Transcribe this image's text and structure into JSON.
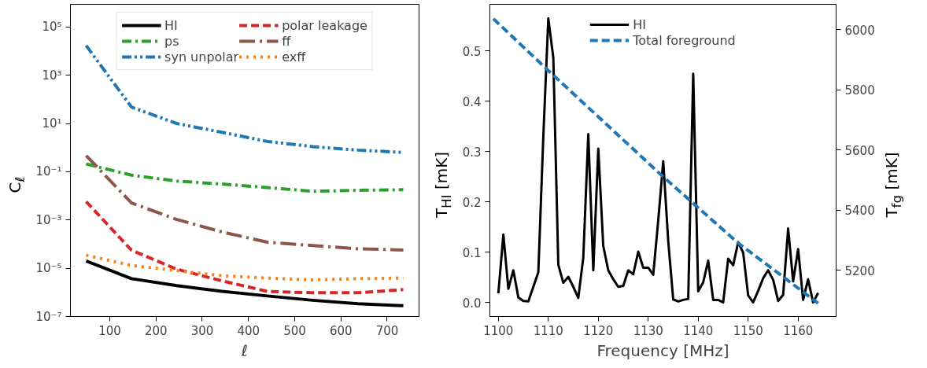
{
  "chart_data": [
    {
      "type": "line",
      "xlabel": "ℓ",
      "ylabel": "C$_{ℓ}$",
      "log": "y",
      "legend": "top",
      "x": [
        49,
        147,
        245,
        343,
        441,
        539,
        637,
        735
      ],
      "xlim": [
        15,
        769
      ],
      "xticks": [
        100,
        200,
        300,
        400,
        500,
        600,
        700
      ],
      "ylim": [
        1e-07,
        870000
      ],
      "yticks": [
        {
          "value": 1e-07,
          "label": "10⁻⁷"
        },
        {
          "value": 1e-05,
          "label": "10⁻⁵"
        },
        {
          "value": 0.001,
          "label": "10⁻³"
        },
        {
          "value": 0.1,
          "label": "10⁻¹"
        },
        {
          "value": 10,
          "label": "10¹"
        },
        {
          "value": 1000,
          "label": "10³"
        },
        {
          "value": 100000,
          "label": "10⁵"
        }
      ],
      "series": [
        {
          "name": "HI",
          "color": "#000000",
          "line_style": "solid",
          "values": [
            2e-05,
            3.7e-06,
            1.9e-06,
            1.1e-06,
            7.1e-07,
            4.7e-07,
            3.4e-07,
            2.8e-07
          ]
        },
        {
          "name": "ps",
          "color": "#2ca02c",
          "line_style": "dashdot",
          "values": [
            0.21,
            0.072,
            0.041,
            0.031,
            0.022,
            0.0155,
            0.017,
            0.018
          ]
        },
        {
          "name": "syn unpolar",
          "color": "#1f77b4",
          "line_style": "dashdotdot",
          "values": [
            17000,
            48,
            10,
            4.3,
            1.8,
            1.1,
            0.79,
            0.63
          ]
        },
        {
          "name": "polar leakage",
          "color": "#d62728",
          "line_style": "dashed",
          "values": [
            0.0058,
            5.6e-05,
            9.1e-06,
            3e-06,
            1.1e-06,
            9.6e-07,
            9.6e-07,
            1.3e-06
          ]
        },
        {
          "name": "ff",
          "color": "#8c564b",
          "line_style": "longdashdot",
          "values": [
            0.47,
            0.0051,
            0.00105,
            0.00032,
            0.00012,
            8.7e-05,
            6.4e-05,
            5.7e-05
          ]
        },
        {
          "name": "exff",
          "color": "#ff7f0e",
          "line_style": "dotted",
          "values": [
            3.5e-05,
            1.3e-05,
            8e-06,
            4.9e-06,
            3.9e-06,
            3.3e-06,
            3.7e-06,
            3.9e-06
          ]
        }
      ]
    },
    {
      "type": "line",
      "xlabel": "Frequency [MHz]",
      "ylabel": "T$_{HI}$ [mK]",
      "y2label": "T$_{fg}$ [mK]",
      "legend": "top",
      "xlim": [
        1098.3,
        1167.6
      ],
      "xticks": [
        1100,
        1110,
        1120,
        1130,
        1140,
        1150,
        1160
      ],
      "ylim": [
        -0.028,
        0.593
      ],
      "yticks": [
        {
          "value": 0,
          "label": "0.0"
        },
        0.1,
        0.2,
        0.3,
        0.4,
        0.5
      ],
      "y2lim": [
        5047,
        6084
      ],
      "y2ticks": [
        5200,
        5400,
        5600,
        5800,
        6000
      ],
      "series": [
        {
          "name": "HI",
          "color": "#000000",
          "line_style": "solid",
          "x": [
            1100,
            1101,
            1102,
            1103,
            1104,
            1105,
            1106,
            1107,
            1108,
            1109,
            1110,
            1111,
            1112,
            1113,
            1114,
            1115,
            1116,
            1117,
            1118,
            1119,
            1120,
            1121,
            1122,
            1123,
            1124,
            1125,
            1126,
            1127,
            1128,
            1129,
            1130,
            1131,
            1132,
            1133,
            1134,
            1135,
            1136,
            1137,
            1138,
            1139,
            1140,
            1141,
            1142,
            1143,
            1144,
            1145,
            1146,
            1147,
            1148,
            1149,
            1150,
            1151,
            1152,
            1153,
            1154,
            1155,
            1156,
            1157,
            1158,
            1159,
            1160,
            1161,
            1162,
            1163,
            1164
          ],
          "values": [
            0.018,
            0.135,
            0.027,
            0.064,
            0.01,
            0.003,
            0.002,
            0.031,
            0.06,
            0.33,
            0.565,
            0.487,
            0.075,
            0.039,
            0.051,
            0.031,
            0.009,
            0.089,
            0.335,
            0.064,
            0.306,
            0.112,
            0.064,
            0.046,
            0.031,
            0.033,
            0.064,
            0.056,
            0.101,
            0.069,
            0.069,
            0.055,
            0.163,
            0.281,
            0.122,
            0.006,
            0.002,
            0.005,
            0.007,
            0.455,
            0.022,
            0.04,
            0.083,
            0.005,
            0.005,
            0.0,
            0.087,
            0.074,
            0.12,
            0.099,
            0.014,
            0.0,
            0.023,
            0.048,
            0.064,
            0.045,
            0.003,
            0.015,
            0.147,
            0.042,
            0.106,
            0.005,
            0.046,
            0.0,
            0.019
          ]
        },
        {
          "name": "Total foreground",
          "color": "#1f77b4",
          "line_style": "dashed",
          "axis": "y2",
          "x": [
            1099,
            1110,
            1133,
            1148,
            1164
          ],
          "values": [
            6036,
            5864,
            5511,
            5291,
            5091
          ]
        }
      ]
    }
  ]
}
